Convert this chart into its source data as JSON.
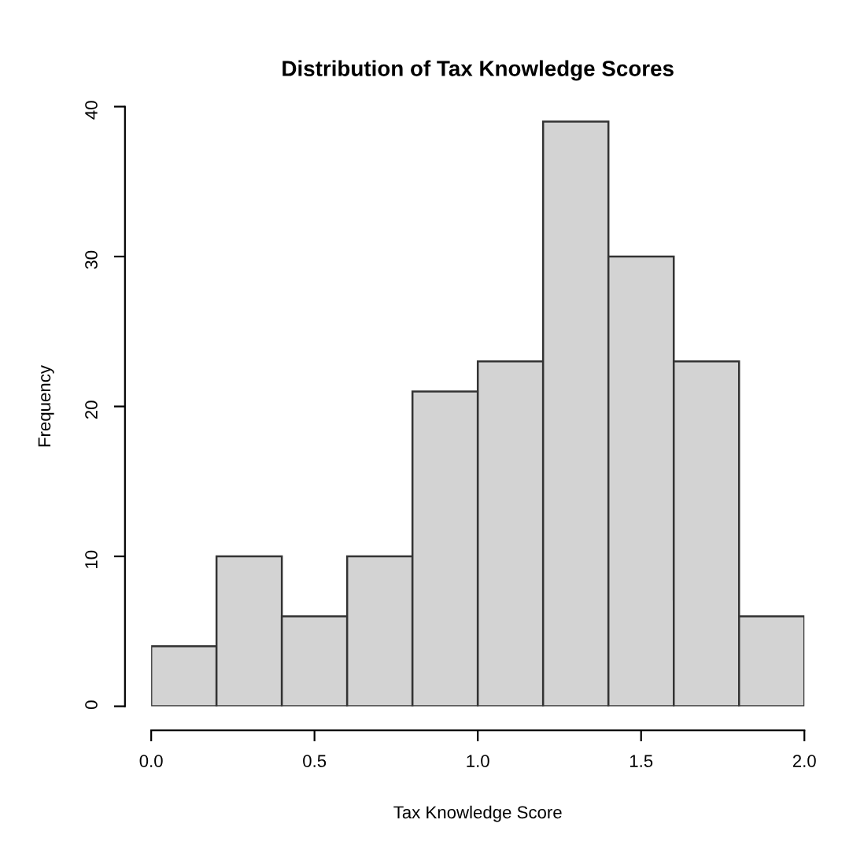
{
  "chart_data": {
    "type": "histogram",
    "title": "Distribution of Tax Knowledge Scores",
    "xlabel": "Tax Knowledge Score",
    "ylabel": "Frequency",
    "bins": [
      0.0,
      0.2,
      0.4,
      0.6,
      0.8,
      1.0,
      1.2,
      1.4,
      1.6,
      1.8,
      2.0
    ],
    "values": [
      4,
      10,
      6,
      10,
      21,
      23,
      39,
      30,
      23,
      6
    ],
    "color": "#d3d3d3",
    "xlim": [
      0,
      2
    ],
    "ylim": [
      0,
      40
    ],
    "xticks": [
      {
        "value": 0,
        "label": "0.0"
      },
      {
        "value": 0.5,
        "label": "0.5"
      },
      {
        "value": 1,
        "label": "1.0"
      },
      {
        "value": 1.5,
        "label": "1.5"
      },
      {
        "value": 2,
        "label": "2.0"
      }
    ],
    "yticks": [
      0,
      10,
      20,
      30,
      40
    ],
    "grid": false
  }
}
